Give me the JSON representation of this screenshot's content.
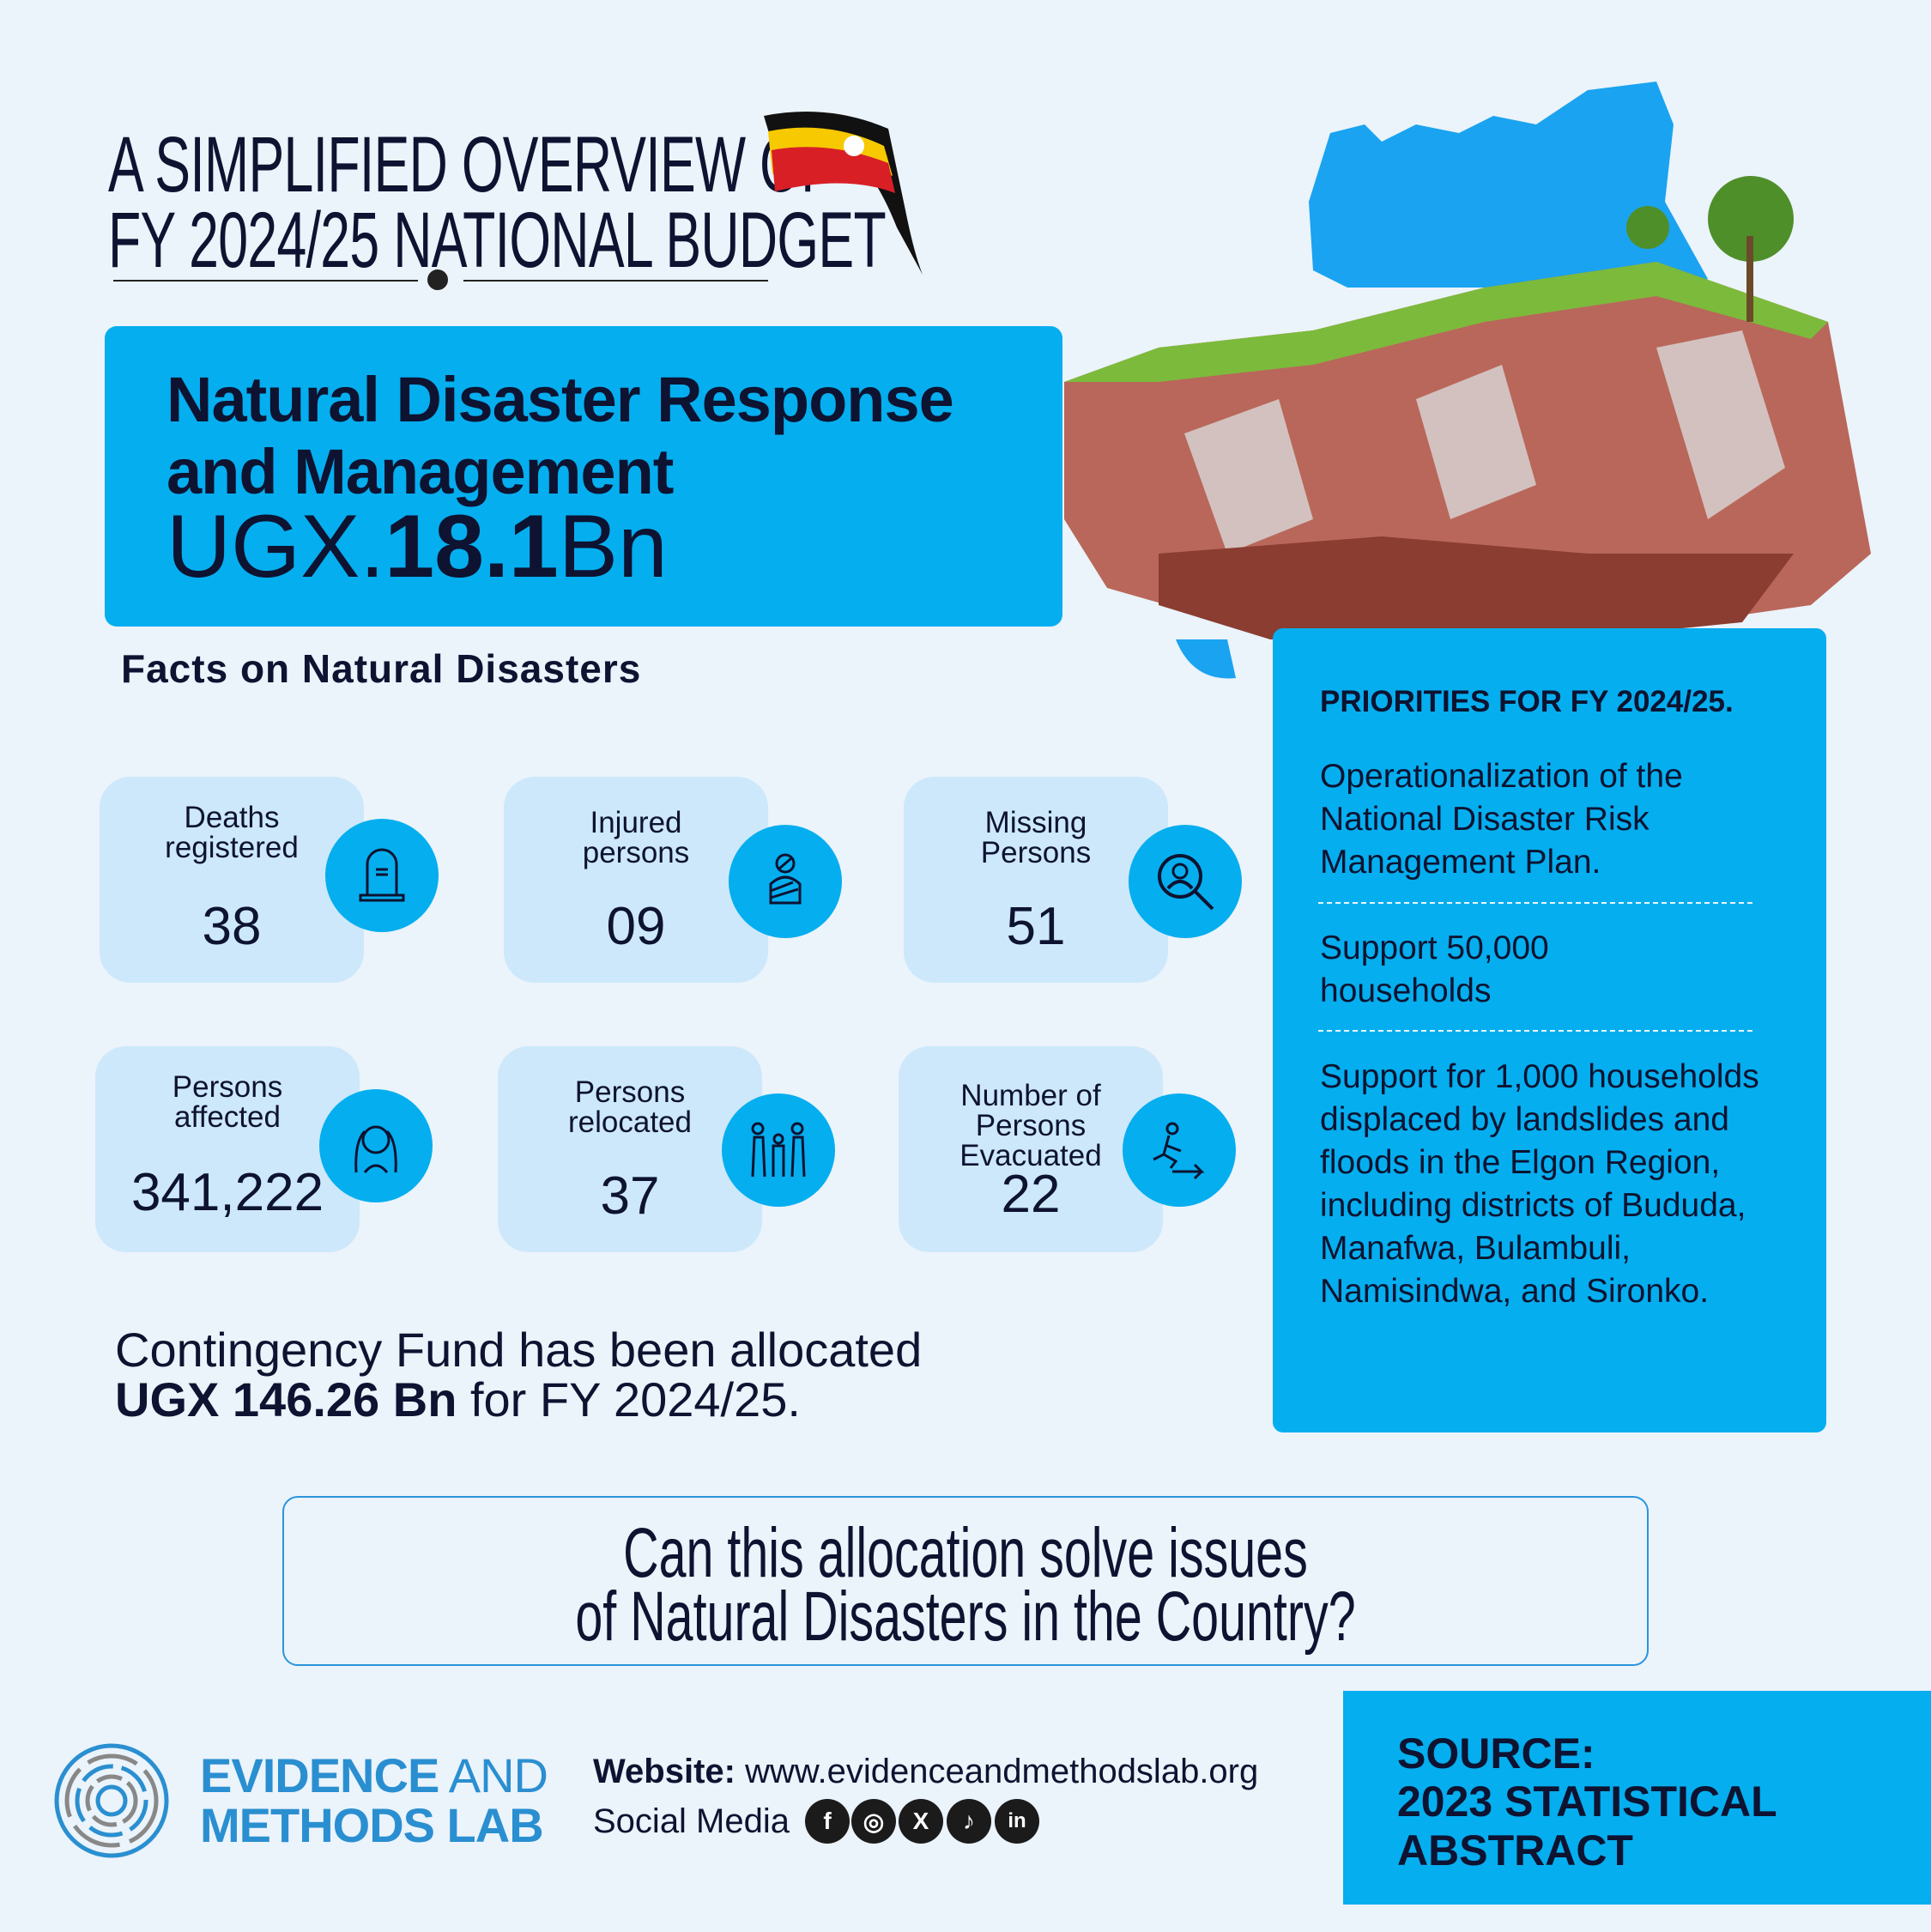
{
  "header": {
    "title_line1": "A SIMPLIFIED OVERVIEW OF",
    "title_line2": "FY 2024/25 NATIONAL BUDGET"
  },
  "hero": {
    "title": "Natural Disaster Response and Management",
    "currency": "UGX.",
    "amount": "18.1",
    "unit": "Bn"
  },
  "facts": {
    "heading": "Facts on Natural Disasters",
    "cards": [
      {
        "label": "Deaths registered",
        "value": "38",
        "icon": "tombstone-icon"
      },
      {
        "label": "Injured persons",
        "value": "09",
        "icon": "injured-person-icon"
      },
      {
        "label": "Missing Persons",
        "value": "51",
        "icon": "search-person-icon"
      },
      {
        "label": "Persons affected",
        "value": "341,222",
        "icon": "distressed-person-icon"
      },
      {
        "label": "Persons relocated",
        "value": "37",
        "icon": "family-icon"
      },
      {
        "label": "Number of Persons Evacuated",
        "value": "22",
        "icon": "evacuation-icon"
      }
    ]
  },
  "contingency": {
    "line1": "Contingency Fund has been allocated",
    "amount": "UGX 146.26 Bn",
    "suffix": " for FY 2024/25."
  },
  "priorities": {
    "title": "PRIORITIES FOR FY 2024/25.",
    "items": [
      "Operationalization of the National Disaster Risk Management Plan.",
      "Support 50,000 households",
      "Support for 1,000 households displaced by landslides and floods in the Elgon Region, including districts of Bududa, Manafwa, Bulambuli, Namisindwa, and Sironko."
    ]
  },
  "question": {
    "line1": "Can this allocation solve issues",
    "line2": "of Natural Disasters in the Country?"
  },
  "footer": {
    "logo_line1a": "EVIDENCE",
    "logo_line1b": " AND",
    "logo_line2": "METHODS LAB",
    "website_label": "Website:",
    "website": "www.evidenceandmethodslab.org",
    "social_label": "Social Media",
    "social": [
      "f",
      "◎",
      "X",
      "♪",
      "in"
    ]
  },
  "source": {
    "line1": "SOURCE:",
    "line2": "2023 STATISTICAL",
    "line3": "ABSTRACT"
  },
  "colors": {
    "accent": "#05aeef",
    "card": "#cde8fb",
    "text": "#0d1330",
    "logo": "#2a8fd0"
  }
}
